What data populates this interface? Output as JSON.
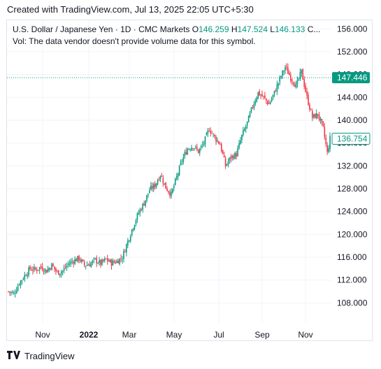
{
  "header": {
    "created": "Created with TradingView.com, Jul 13, 2025 22:05 UTC+5:30"
  },
  "legend": {
    "symbol": "U.S. Dollar / Japanese Yen · 1D · CMC Markets",
    "o_label": "O",
    "o_value": "146.259",
    "h_label": "H",
    "h_value": "147.524",
    "l_label": "L",
    "l_value": "146.133",
    "ellipsis": "C...",
    "volume_note": "Vol: The data vendor doesn't provide volume data for this symbol."
  },
  "footer": {
    "brand": "TradingView"
  },
  "colors": {
    "up": "#089981",
    "down": "#f23645",
    "grid": "#f0f3fa",
    "price_line": "#089981"
  },
  "chart_data": {
    "type": "candlestick",
    "ylim": [
      104.5,
      157.5
    ],
    "yticks": [
      "108.000",
      "112.000",
      "116.000",
      "120.000",
      "124.000",
      "128.000",
      "132.000",
      "136.000",
      "140.000",
      "144.000",
      "148.000",
      "152.000",
      "156.000"
    ],
    "xticks": [
      {
        "label": "Nov",
        "bold": false
      },
      {
        "label": "2022",
        "bold": true
      },
      {
        "label": "Mar",
        "bold": false
      },
      {
        "label": "May",
        "bold": false
      },
      {
        "label": "Jul",
        "bold": false
      },
      {
        "label": "Sep",
        "bold": false
      },
      {
        "label": "Nov",
        "bold": false
      }
    ],
    "price_labels": [
      {
        "value": 147.446,
        "text": "147.446",
        "style": "filled"
      },
      {
        "value": 136.754,
        "text": "136.754",
        "style": "outline"
      }
    ],
    "close_path": [
      [
        0,
        110.0
      ],
      [
        4,
        109.6
      ],
      [
        8,
        111.5
      ],
      [
        12,
        112.8
      ],
      [
        16,
        114.0
      ],
      [
        20,
        113.8
      ],
      [
        24,
        114.3
      ],
      [
        28,
        113.6
      ],
      [
        32,
        114.6
      ],
      [
        36,
        113.3
      ],
      [
        40,
        113.6
      ],
      [
        44,
        114.8
      ],
      [
        48,
        115.4
      ],
      [
        52,
        115.8
      ],
      [
        56,
        114.6
      ],
      [
        60,
        114.8
      ],
      [
        64,
        115.5
      ],
      [
        68,
        114.9
      ],
      [
        72,
        115.6
      ],
      [
        76,
        115.0
      ],
      [
        80,
        115.3
      ],
      [
        84,
        116.0
      ],
      [
        88,
        118.8
      ],
      [
        92,
        121.5
      ],
      [
        96,
        123.8
      ],
      [
        100,
        125.5
      ],
      [
        104,
        127.8
      ],
      [
        108,
        128.6
      ],
      [
        112,
        130.5
      ],
      [
        116,
        128.2
      ],
      [
        120,
        127.0
      ],
      [
        124,
        130.0
      ],
      [
        128,
        133.0
      ],
      [
        132,
        135.0
      ],
      [
        136,
        135.5
      ],
      [
        140,
        134.5
      ],
      [
        144,
        136.0
      ],
      [
        148,
        138.5
      ],
      [
        152,
        137.0
      ],
      [
        156,
        135.8
      ],
      [
        160,
        132.0
      ],
      [
        164,
        133.5
      ],
      [
        168,
        134.0
      ],
      [
        172,
        137.2
      ],
      [
        176,
        139.5
      ],
      [
        180,
        142.5
      ],
      [
        184,
        144.8
      ],
      [
        188,
        144.0
      ],
      [
        192,
        142.8
      ],
      [
        196,
        144.8
      ],
      [
        200,
        147.2
      ],
      [
        204,
        149.3
      ],
      [
        208,
        147.5
      ],
      [
        212,
        146.0
      ],
      [
        216,
        148.5
      ],
      [
        220,
        144.0
      ],
      [
        224,
        140.5
      ],
      [
        228,
        141.0
      ],
      [
        232,
        138.5
      ],
      [
        235,
        134.2
      ],
      [
        237,
        136.754
      ]
    ]
  }
}
